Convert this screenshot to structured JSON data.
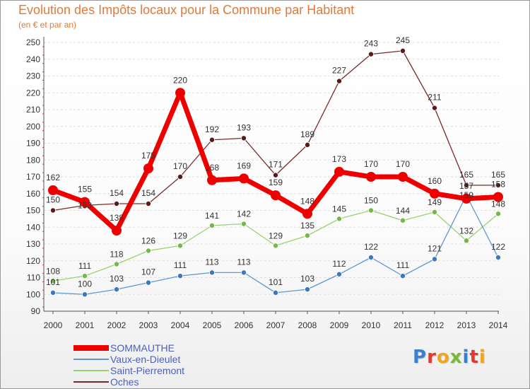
{
  "header": {
    "title": "Evolution des Impôts locaux pour la Commune par Habitant",
    "subtitle": "(en € et par an)"
  },
  "logo": {
    "text": "Proxiti",
    "colors": [
      "#3a7fd0",
      "#e2382f",
      "#f0a51c",
      "#78b93a",
      "#3a7fd0",
      "#e2382f",
      "#f0a51c"
    ]
  },
  "chart_data": {
    "type": "line",
    "title": "Evolution des Impôts locaux pour la Commune par Habitant",
    "subtitle": "(en € et par an)",
    "x": [
      2000,
      2001,
      2002,
      2003,
      2004,
      2005,
      2006,
      2007,
      2008,
      2009,
      2010,
      2011,
      2012,
      2013,
      2014
    ],
    "xlabel": "",
    "ylabel": "",
    "ylim": [
      90,
      250
    ],
    "yticks": [
      90,
      100,
      110,
      120,
      130,
      140,
      150,
      160,
      170,
      180,
      190,
      200,
      210,
      220,
      230,
      240,
      250
    ],
    "grid": "horizontal dashed",
    "legend_position": "bottom-left",
    "series": [
      {
        "name": "Oches",
        "color": "#7a2a2a",
        "values": [
          150,
          153,
          154,
          154,
          170,
          192,
          193,
          171,
          189,
          227,
          243,
          245,
          211,
          165,
          165
        ]
      },
      {
        "name": "Saint-Pierremont",
        "color": "#98d36e",
        "values": [
          108,
          111,
          118,
          126,
          129,
          141,
          142,
          129,
          135,
          145,
          150,
          144,
          149,
          132,
          148
        ]
      },
      {
        "name": "Vaux-en-Dieulet",
        "color": "#6096cf",
        "values": [
          101,
          100,
          103,
          107,
          111,
          113,
          113,
          101,
          103,
          112,
          122,
          111,
          121,
          159,
          122
        ]
      },
      {
        "name": "SOMMAUTHE",
        "color": "#ee0000",
        "values": [
          162,
          155,
          138,
          175,
          220,
          168,
          169,
          159,
          148,
          173,
          170,
          170,
          160,
          157,
          158
        ]
      }
    ],
    "data_labels": {
      "Oches": [
        "150",
        "",
        "154",
        "154",
        "170",
        "192",
        "193",
        "171",
        "189",
        "227",
        "243",
        "245",
        "211",
        "165",
        "165"
      ],
      "Saint-Pierremont": [
        "108",
        "111",
        "118",
        "126",
        "129",
        "141",
        "142",
        "129",
        "135",
        "145",
        "150",
        "144",
        "149",
        "132",
        "148"
      ],
      "Vaux-en-Dieulet": [
        "101",
        "100",
        "103",
        "107",
        "111",
        "113",
        "113",
        "101",
        "103",
        "112",
        "122",
        "111",
        "121",
        "",
        "122"
      ],
      "SOMMAUTHE": [
        "162",
        "155",
        "138",
        "175",
        "220",
        "168",
        "169",
        "159",
        "148",
        "173",
        "170",
        "170",
        "160",
        "157",
        "158"
      ]
    },
    "extra_labels": {
      "Oches": {
        "1": "153"
      },
      "Vaux-en-Dieulet": {
        "13": "159"
      }
    },
    "legend_order": [
      "SOMMAUTHE",
      "Vaux-en-Dieulet",
      "Saint-Pierremont",
      "Oches"
    ]
  }
}
